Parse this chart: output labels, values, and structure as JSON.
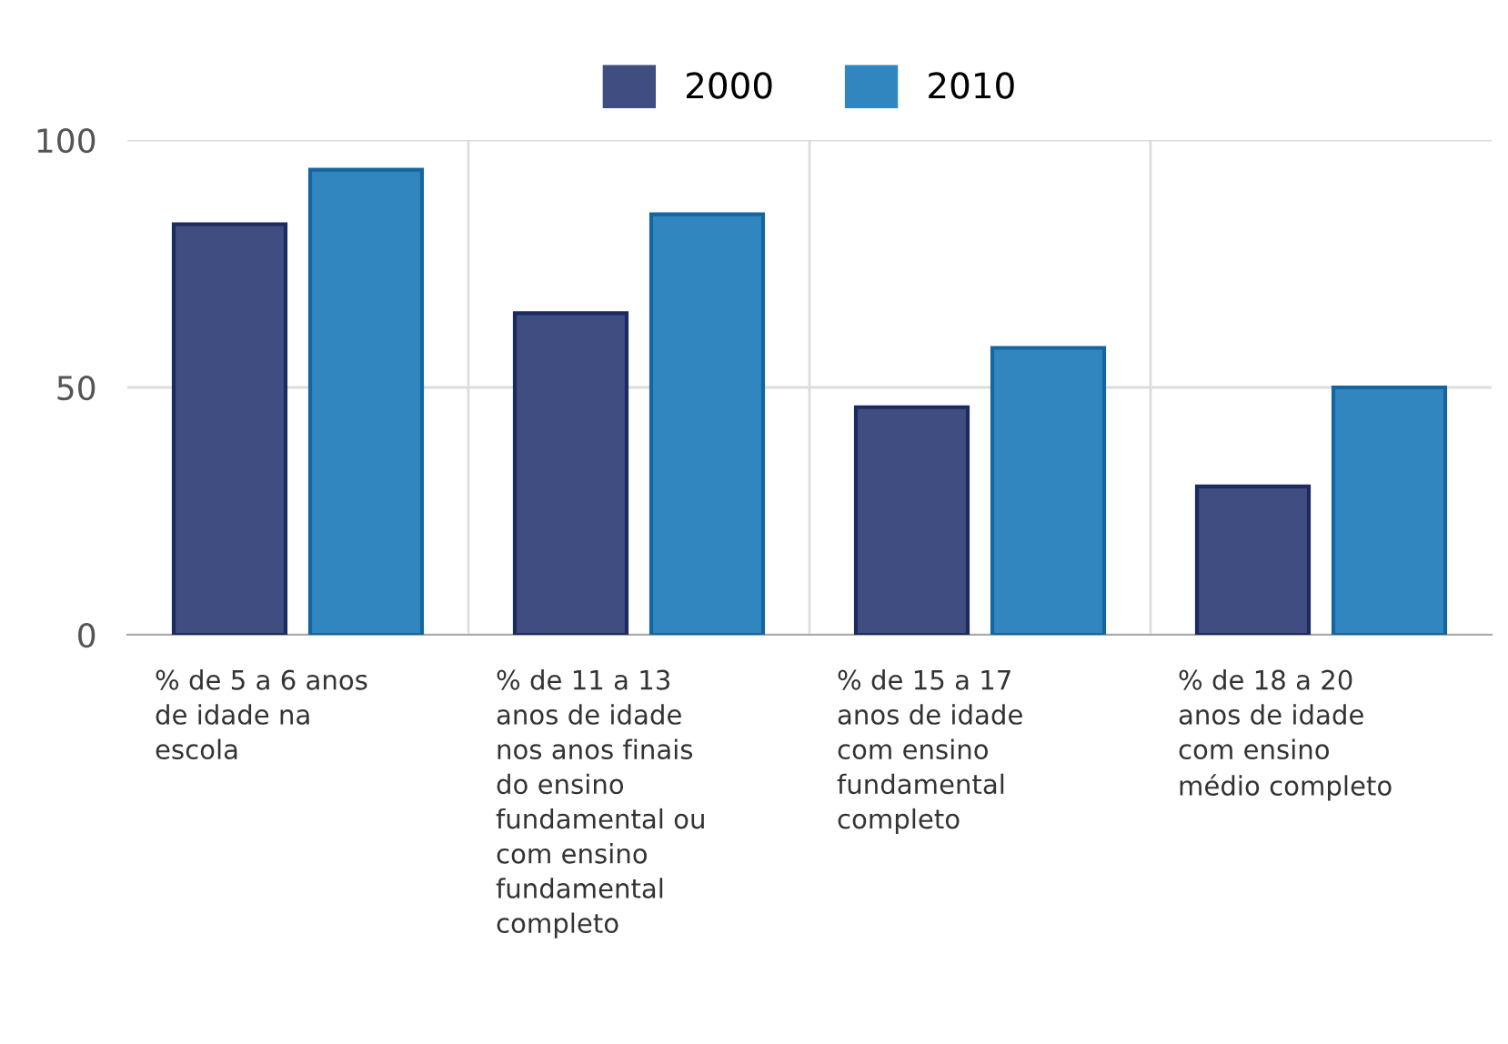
{
  "chart_data": {
    "type": "bar",
    "categories": [
      "% de 5 a 6 anos\nde idade na\nescola",
      "% de 11 a 13\nanos de idade\nnos anos finais\ndo ensino\nfundamental ou\ncom ensino\nfundamental\ncompleto",
      "% de 15 a 17\nanos de idade\ncom ensino\nfundamental\ncompleto",
      "% de 18 a 20\nanos de idade\ncom ensino\nmédio completo"
    ],
    "series": [
      {
        "name": "2000",
        "color": "#404d80",
        "values": [
          83,
          65,
          46,
          30
        ]
      },
      {
        "name": "2010",
        "color": "#3186bf",
        "values": [
          94,
          85,
          58,
          50
        ]
      }
    ],
    "ylim": [
      0,
      100
    ],
    "yticks": [
      0,
      50,
      100
    ],
    "grid": true,
    "legend": "top"
  }
}
